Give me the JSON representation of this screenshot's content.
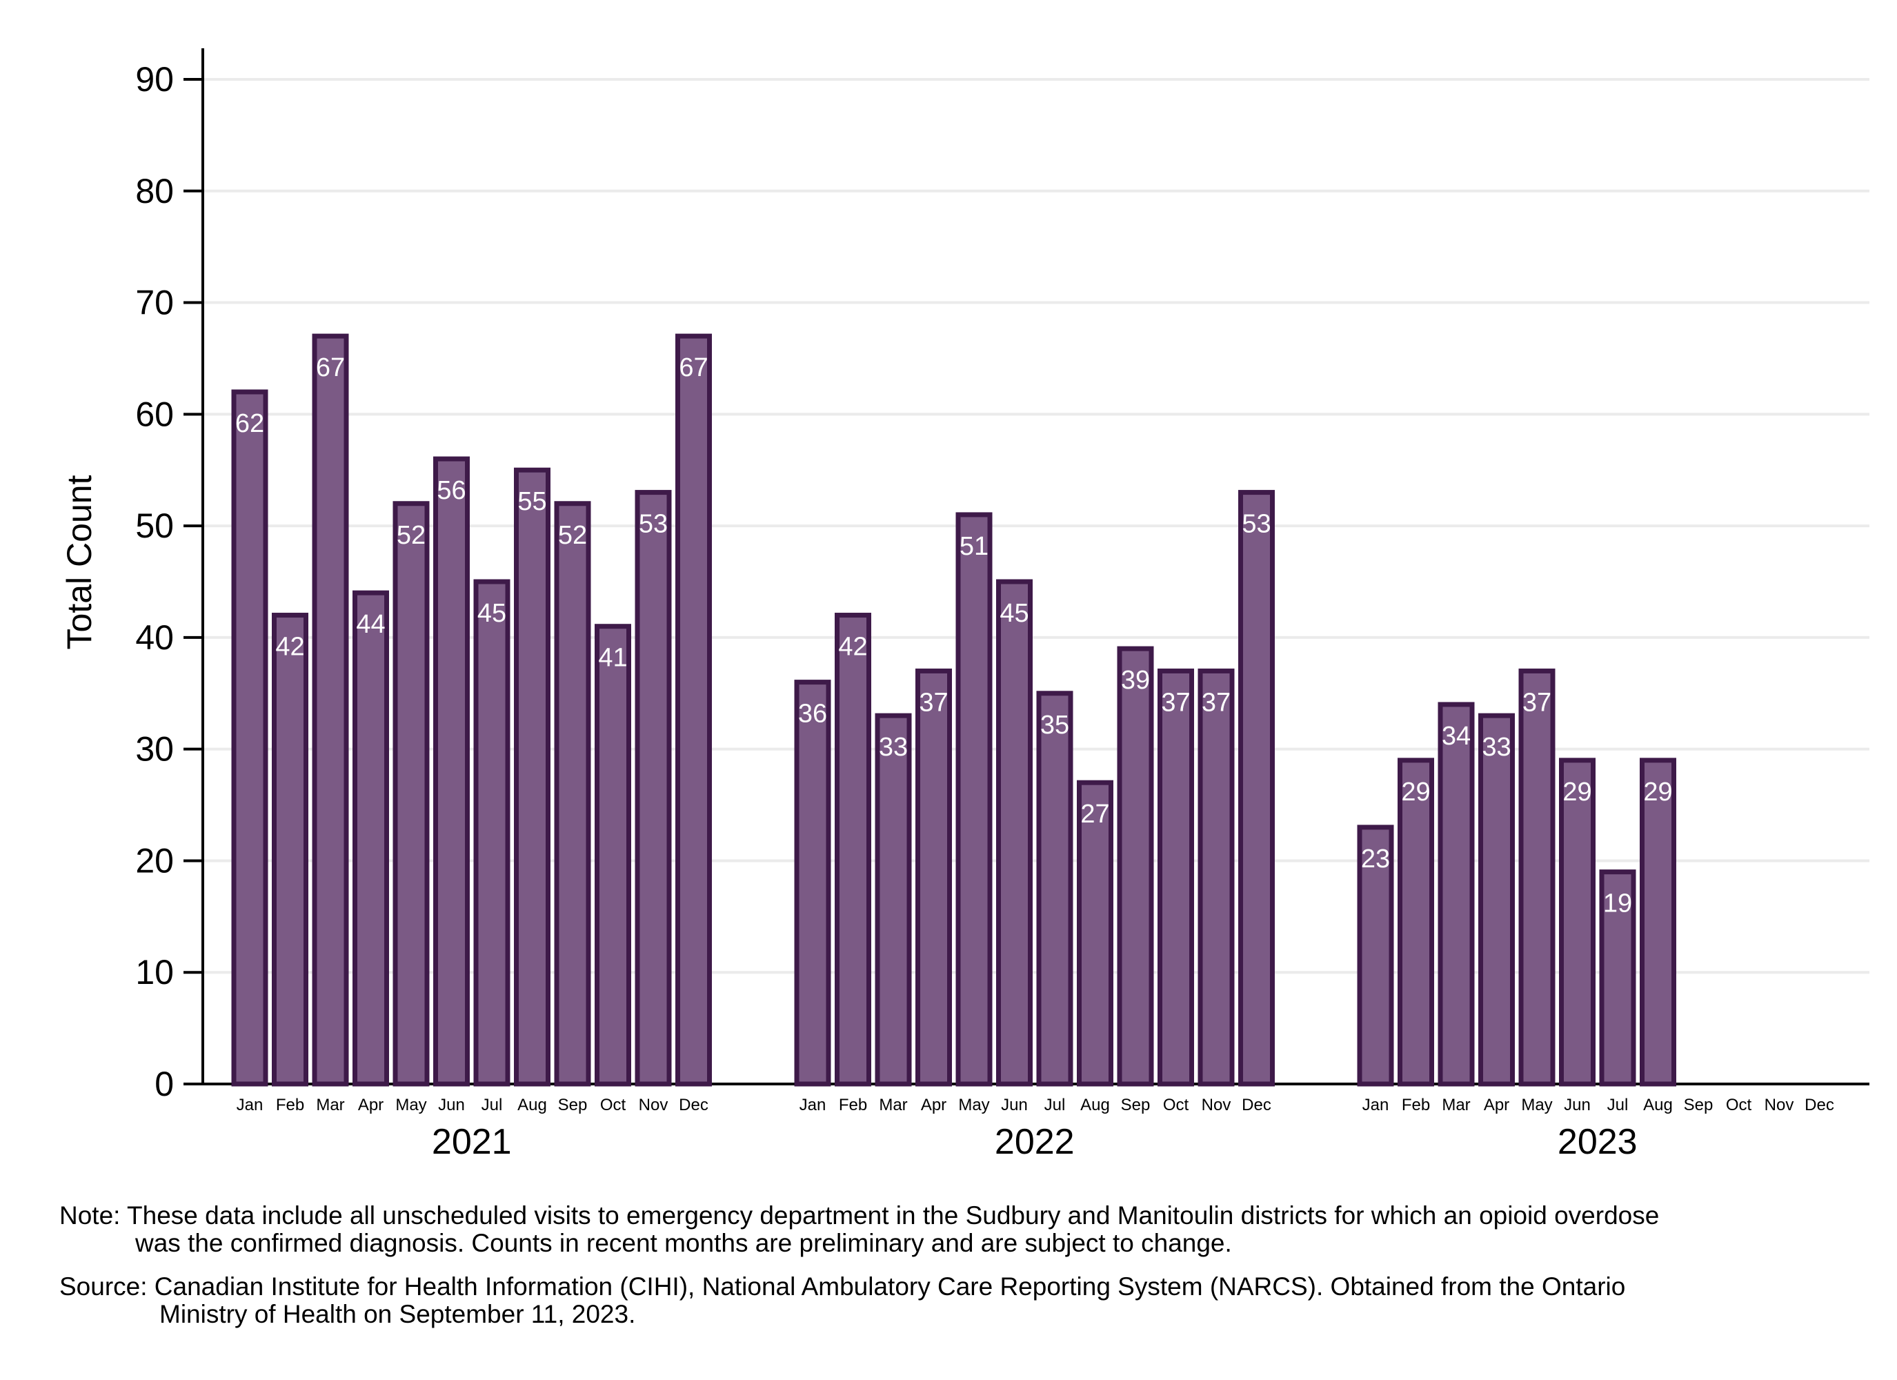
{
  "chart_data": {
    "type": "bar",
    "ylabel": "Total Count",
    "xlabel": "",
    "ylim": [
      0,
      90
    ],
    "yticks": [
      0,
      10,
      20,
      30,
      40,
      50,
      60,
      70,
      80,
      90
    ],
    "grid": true,
    "months": [
      "Jan",
      "Feb",
      "Mar",
      "Apr",
      "May",
      "Jun",
      "Jul",
      "Aug",
      "Sep",
      "Oct",
      "Nov",
      "Dec"
    ],
    "groups": [
      {
        "year": "2021",
        "values": [
          62,
          42,
          67,
          44,
          52,
          56,
          45,
          55,
          52,
          41,
          53,
          67
        ]
      },
      {
        "year": "2022",
        "values": [
          36,
          42,
          33,
          37,
          51,
          45,
          35,
          27,
          39,
          37,
          37,
          53
        ]
      },
      {
        "year": "2023",
        "values": [
          23,
          29,
          34,
          33,
          37,
          29,
          19,
          29,
          null,
          null,
          null,
          null
        ]
      }
    ],
    "colors": {
      "bar_fill": "#7b5a85",
      "bar_stroke": "#3e1a49",
      "grid": "#ebebeb",
      "label": "#ffffff"
    }
  },
  "notes": {
    "note_line1": "Note: These data include all unscheduled visits to emergency department in the Sudbury and Manitoulin districts for which an opioid overdose",
    "note_line2": "was the confirmed diagnosis. Counts in recent months are preliminary and are subject to change.",
    "source_line1": "Source: Canadian Institute for Health Information (CIHI), National Ambulatory Care Reporting System (NARCS). Obtained from the Ontario",
    "source_line2": "Ministry of Health on September 11, 2023."
  }
}
